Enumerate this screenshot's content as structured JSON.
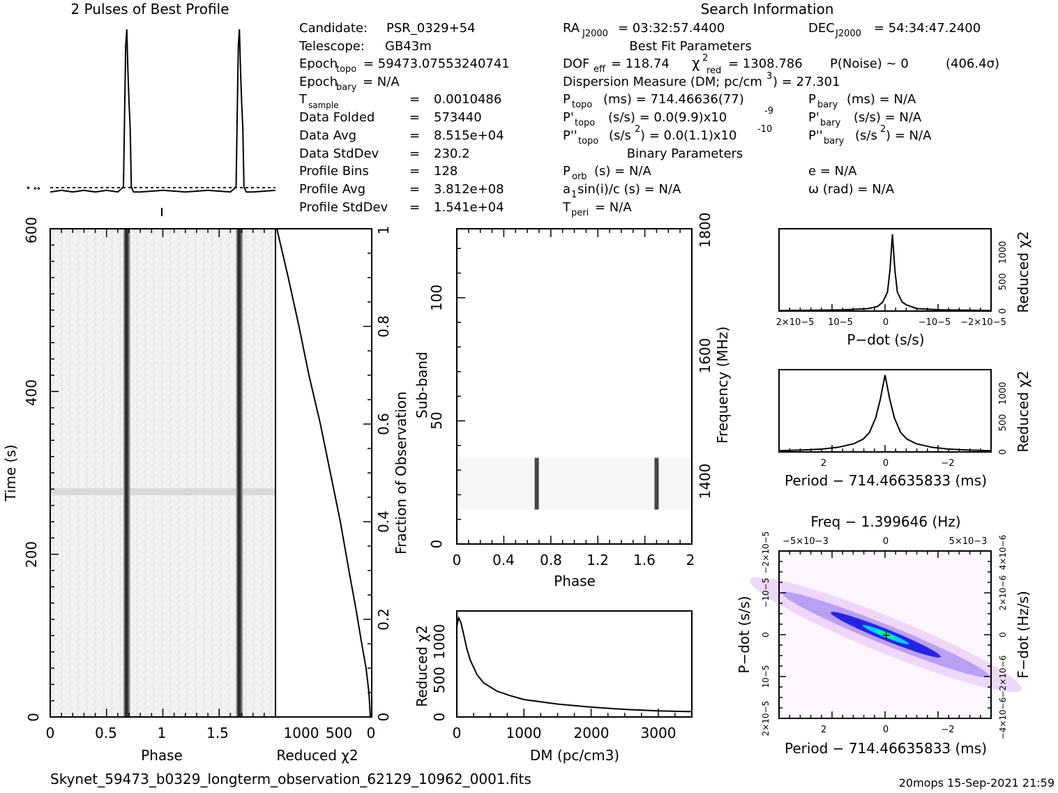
{
  "titles": {
    "profile": "2 Pulses of Best Profile",
    "search": "Search Information",
    "best_fit": "Best Fit Parameters",
    "binary": "Binary Parameters"
  },
  "info": {
    "candidate": {
      "label": "Candidate:",
      "value": "PSR_0329+54"
    },
    "telescope": {
      "label": "Telescope:",
      "value": "GB43m"
    },
    "epoch_topo": {
      "label": "Epoch",
      "sub": "topo",
      "value": "= 59473.07553240741"
    },
    "epoch_bary": {
      "label": "Epoch",
      "sub": "bary",
      "value": "= N/A"
    },
    "t_sample": {
      "label": "T",
      "sub": "sample",
      "value": "0.0010486"
    },
    "data_folded": {
      "label": "Data Folded",
      "value": "573440"
    },
    "data_avg": {
      "label": "Data Avg",
      "value": "8.515e+04"
    },
    "data_stddev": {
      "label": "Data StdDev",
      "value": "230.2"
    },
    "profile_bins": {
      "label": "Profile Bins",
      "value": "128"
    },
    "profile_avg": {
      "label": "Profile Avg",
      "value": "3.812e+08"
    },
    "profile_stddev": {
      "label": "Profile StdDev",
      "value": "1.541e+04"
    },
    "equals": "="
  },
  "search": {
    "ra": {
      "label": "RA",
      "sub": "J2000",
      "value": "= 03:32:57.4400"
    },
    "dec": {
      "label": "DEC",
      "sub": "J2000",
      "value": "= 54:34:47.2400"
    },
    "dof": {
      "label": "DOF",
      "sub": "eff",
      "value": "= 118.74"
    },
    "chi": {
      "label": "χ",
      "sup": "2",
      "sub": "red",
      "value": "= 1308.786"
    },
    "pnoise": "P(Noise) ~ 0",
    "sigma": "(406.4σ)",
    "dm": "Dispersion Measure (DM; pc/cm",
    "dm_sup": "3",
    "dm_val": ") = 27.301",
    "ptopo": {
      "label": "P",
      "sub": "topo",
      "value": "(ms) =  714.46636(77)"
    },
    "pbary": {
      "label": "P",
      "sub": "bary",
      "value": "(ms) = N/A"
    },
    "pdtopo": {
      "label": "P'",
      "sub": "topo",
      "value": "(s/s) = 0.0(9.9)x10",
      "sup": "-9"
    },
    "pdbary": {
      "label": "P'",
      "sub": "bary",
      "value": "(s/s) = N/A"
    },
    "pddtopo": {
      "label": "P''",
      "sub": "topo",
      "value": "(s/s",
      "sup2": "2",
      "value2": ") = 0.0(1.1)x10",
      "sup": "-10"
    },
    "pddbary": {
      "label": "P''",
      "sub": "bary",
      "value": "(s/s",
      "sup2": "2",
      "value2": ") = N/A"
    },
    "porb": {
      "label": "P",
      "sub": "orb",
      "value": "(s) = N/A"
    },
    "ecc": "e = N/A",
    "a1": {
      "label": "a",
      "sub": "1",
      "value": "sin(i)/c (s) = N/A"
    },
    "omega": "ω (rad) = N/A",
    "tperi": {
      "label": "T",
      "sub": "peri",
      "value": "= N/A"
    }
  },
  "footer": {
    "filename": "Skynet_59473_b0329_longterm_observation_62129_10962_0001.fits",
    "stamp": "20mops  15-Sep-2021 21:59"
  },
  "colors": {
    "axis": "#000000",
    "pulse_band": "#1a1a1a",
    "background_noise": "#f2f2f2",
    "map_low": "#ffffff",
    "map_mid": "#d7a8f0",
    "map_high": "#0000cc",
    "map_peak": "#00ff88"
  },
  "chart_data": [
    {
      "type": "line",
      "id": "profile",
      "title": "2 Pulses of Best Profile",
      "x": [
        0,
        0.1,
        0.2,
        0.3,
        0.4,
        0.5,
        0.6,
        0.65,
        0.67,
        0.68,
        0.69,
        0.7,
        0.71,
        0.72,
        0.74,
        0.8,
        1.0,
        1.2,
        1.4,
        1.6,
        1.65,
        1.67,
        1.68,
        1.69,
        1.7,
        1.71,
        1.72,
        1.74,
        1.8,
        2.0
      ],
      "values": [
        0.02,
        0.03,
        0.02,
        0.03,
        0.02,
        0.03,
        0.02,
        0.05,
        0.9,
        1.0,
        0.75,
        0.55,
        0.4,
        0.05,
        0.02,
        0.02,
        0.03,
        0.02,
        0.03,
        0.02,
        0.05,
        0.9,
        1.0,
        0.75,
        0.55,
        0.4,
        0.05,
        0.02,
        0.02,
        0.03
      ],
      "xlim": [
        0,
        2
      ],
      "ylim": [
        0,
        1
      ]
    },
    {
      "type": "heatmap",
      "id": "time_phase",
      "xlabel": "Phase",
      "ylabel": "Time (s)",
      "xlim": [
        0,
        2
      ],
      "ylim": [
        0,
        600
      ],
      "xticks": [
        "0",
        "0.5",
        "1",
        "1.5"
      ],
      "yticks": [
        "0",
        "200",
        "400",
        "600"
      ],
      "pulse_phases": [
        0.68,
        1.68
      ]
    },
    {
      "type": "line",
      "id": "chi_vs_time",
      "xlabel": "Reduced χ2",
      "ylabel": "Fraction of Observation",
      "xticks": [
        "1000",
        "500",
        "0"
      ],
      "yticks": [
        "0",
        "0.2",
        "0.4",
        "0.6",
        "0.8",
        "1"
      ],
      "x": [
        0,
        20,
        60,
        120,
        200,
        300,
        420,
        560,
        700,
        860,
        1000,
        1150,
        1310
      ],
      "y": [
        0,
        0.05,
        0.1,
        0.15,
        0.22,
        0.3,
        0.4,
        0.5,
        0.6,
        0.7,
        0.8,
        0.9,
        1.0
      ],
      "xlim": [
        1300,
        0
      ],
      "ylim": [
        0,
        1
      ]
    },
    {
      "type": "heatmap",
      "id": "subband_phase",
      "xlabel": "Phase",
      "ylabel": "Sub-band",
      "y2label": "Frequency (MHz)",
      "xlim": [
        0,
        2
      ],
      "ylim": [
        0,
        128
      ],
      "xticks": [
        "0",
        "0.4",
        "0.8",
        "1.2",
        "1.6",
        "2"
      ],
      "yticks": [
        "0",
        "50",
        "100"
      ],
      "y2ticks": [
        "1400",
        "1600",
        "1800"
      ],
      "band_subbands": [
        14,
        35
      ],
      "pulse_phases": [
        0.68,
        1.7
      ]
    },
    {
      "type": "line",
      "id": "chi_vs_dm",
      "xlabel": "DM (pc/cm3)",
      "ylabel": "Reduced χ2",
      "xticks": [
        "0",
        "1000",
        "2000",
        "3000"
      ],
      "yticks": [
        "0",
        "500",
        "1000"
      ],
      "x": [
        0,
        27,
        60,
        100,
        150,
        200,
        300,
        400,
        600,
        800,
        1000,
        1500,
        2000,
        2500,
        3000,
        3500
      ],
      "values": [
        1200,
        1308,
        1250,
        1100,
        900,
        750,
        560,
        450,
        340,
        280,
        230,
        170,
        130,
        100,
        80,
        70
      ],
      "xlim": [
        0,
        3500
      ],
      "ylim": [
        0,
        1400
      ]
    },
    {
      "type": "line",
      "id": "chi_vs_pdot",
      "xlabel": "P−dot (s/s)",
      "ylabel": "Reduced χ2",
      "xticks": [
        "2×10−5",
        "10−5",
        "0",
        "−10−5",
        "−2×10−5"
      ],
      "yticks": [
        "0",
        "500",
        "1000"
      ],
      "xlim": [
        2.3e-05,
        -2e-05
      ],
      "ylim": [
        0,
        1400
      ],
      "x": [
        2.3e-05,
        1.5e-05,
        1e-05,
        5e-06,
        3e-06,
        2e-06,
        1e-06,
        5e-07,
        0,
        -5e-07,
        -1e-06,
        -2e-06,
        -3e-06,
        -5e-06,
        -1e-05,
        -2e-05
      ],
      "values": [
        10,
        15,
        20,
        40,
        80,
        150,
        320,
        700,
        1308,
        700,
        320,
        150,
        100,
        40,
        20,
        10
      ]
    },
    {
      "type": "line",
      "id": "chi_vs_period",
      "xlabel": "Period − 714.46635833 (ms)",
      "ylabel": "Reduced χ2",
      "xticks": [
        "2",
        "0",
        "−2"
      ],
      "yticks": [
        "0",
        "500",
        "1000"
      ],
      "xlim": [
        3.4,
        -3.4
      ],
      "ylim": [
        0,
        1400
      ],
      "x": [
        3.4,
        2.5,
        2,
        1.5,
        1,
        0.7,
        0.5,
        0.3,
        0.15,
        0,
        -0.15,
        -0.3,
        -0.5,
        -0.7,
        -1,
        -1.5,
        -2,
        -2.5,
        -3.4
      ],
      "values": [
        20,
        35,
        50,
        80,
        140,
        220,
        330,
        580,
        900,
        1308,
        900,
        580,
        330,
        220,
        140,
        80,
        50,
        35,
        20
      ]
    },
    {
      "type": "heatmap",
      "id": "period_pdot",
      "title": "Freq − 1.399646 (Hz)",
      "xlabel": "Period − 714.46635833 (ms)",
      "ylabel": "P−dot (s/s)",
      "y2label": "F−dot (Hz/s)",
      "xticks": [
        "2",
        "0",
        "−2"
      ],
      "x2ticks": [
        "−5×10−3",
        "0",
        "5×10−3"
      ],
      "yticks": [
        "2×10−5",
        "10−5",
        "0",
        "−10−5",
        "−2×10−5"
      ],
      "y2ticks": [
        "−4×10−6",
        "−2×10−6",
        "0",
        "2×10−6",
        "4×10−6"
      ]
    }
  ]
}
